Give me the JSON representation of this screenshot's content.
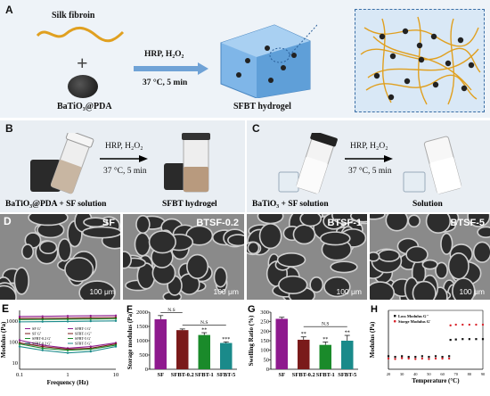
{
  "panel_a": {
    "letter": "A",
    "silk_fibroin": "Silk fibroin",
    "plus": "+",
    "batio3_pda": "BaTiO₃@PDA",
    "reagents": "HRP, H₂O₂",
    "conditions": "37 °C, 5 min",
    "product": "SFBT hydrogel"
  },
  "panel_b": {
    "letter": "B",
    "reagents": "HRP, H₂O₂",
    "conditions": "37 °C, 5 min",
    "left_label": "BaTiO₃@PDA + SF solution",
    "right_label": "SFBT hydrogel"
  },
  "panel_c": {
    "letter": "C",
    "reagents": "HRP, H₂O₂",
    "conditions": "37 °C, 5 min",
    "left_label": "BaTiO₃ + SF solution",
    "right_label": "Solution"
  },
  "panel_d": {
    "letter": "D",
    "images": [
      {
        "label": "SF",
        "scale": "100 μm"
      },
      {
        "label": "BTSF-0.2",
        "scale": "100 μm"
      },
      {
        "label": "BTSF-1",
        "scale": "100 μm"
      },
      {
        "label": "BTSF-5",
        "scale": "100 μm"
      }
    ]
  },
  "colors": {
    "sf": "#8e1a8e",
    "sfbt02": "#7a1a1a",
    "sfbt1": "#1a8a2a",
    "sfbt5": "#1a8a8a",
    "loss": "#111111",
    "storage": "#d9222a"
  },
  "chart_data": [
    {
      "panel": "E",
      "type": "line",
      "xlabel": "Frequency (Hz)",
      "ylabel": "Modulus (Pa)",
      "x_scale": "log",
      "y_scale": "log",
      "xlim": [
        0.1,
        10
      ],
      "x_ticks": [
        "0.1",
        "1",
        "10"
      ],
      "y_ticks": [
        "10",
        "100",
        "1000"
      ],
      "legend": [
        "SF G'",
        "SF G''",
        "SFBT-0.2 G'",
        "SFBT-0.2 G''",
        "SFBT-1 G'",
        "SFBT-1 G''",
        "SFBT-5 G'",
        "SFBT-5 G''"
      ],
      "series": [
        {
          "name": "SF G'",
          "x": [
            0.1,
            0.3,
            1,
            3,
            10
          ],
          "y": [
            1600,
            1650,
            1700,
            1750,
            1800
          ]
        },
        {
          "name": "SF G''",
          "x": [
            0.1,
            0.3,
            1,
            3,
            10
          ],
          "y": [
            120,
            70,
            50,
            60,
            90
          ]
        },
        {
          "name": "SFBT-0.2 G'",
          "x": [
            0.1,
            0.3,
            1,
            3,
            10
          ],
          "y": [
            1300,
            1330,
            1360,
            1400,
            1450
          ]
        },
        {
          "name": "SFBT-0.2 G''",
          "x": [
            0.1,
            0.3,
            1,
            3,
            10
          ],
          "y": [
            90,
            60,
            45,
            50,
            80
          ]
        },
        {
          "name": "SFBT-1 G'",
          "x": [
            0.1,
            0.3,
            1,
            3,
            10
          ],
          "y": [
            1150,
            1170,
            1200,
            1230,
            1280
          ]
        },
        {
          "name": "SFBT-1 G''",
          "x": [
            0.1,
            0.3,
            1,
            3,
            10
          ],
          "y": [
            80,
            50,
            40,
            45,
            70
          ]
        },
        {
          "name": "SFBT-5 G'",
          "x": [
            0.1,
            0.3,
            1,
            3,
            10
          ],
          "y": [
            900,
            920,
            940,
            970,
            1000
          ]
        },
        {
          "name": "SFBT-5 G''",
          "x": [
            0.1,
            0.3,
            1,
            3,
            10
          ],
          "y": [
            60,
            40,
            30,
            35,
            60
          ]
        }
      ]
    },
    {
      "panel": "F",
      "type": "bar",
      "ylabel": "Storage modulus (Pa)",
      "categories": [
        "SF",
        "SFBT-0.2",
        "SFBT-1",
        "SFBT-5"
      ],
      "values": [
        1750,
        1370,
        1200,
        920
      ],
      "errors": [
        130,
        40,
        80,
        40
      ],
      "ylim": [
        0,
        2000
      ],
      "y_ticks": [
        0,
        500,
        1000,
        1500,
        2000
      ],
      "significance": [
        "",
        "",
        "**",
        "***"
      ],
      "ns_labels": [
        "N.S",
        "N.S"
      ]
    },
    {
      "panel": "G",
      "type": "bar",
      "ylabel": "Swelling Ratio (%)",
      "categories": [
        "SF",
        "SFBT-0.2",
        "SFBT-1",
        "SFBT-5"
      ],
      "values": [
        265,
        155,
        128,
        150
      ],
      "errors": [
        8,
        15,
        15,
        28
      ],
      "ylim": [
        0,
        300
      ],
      "y_ticks": [
        0,
        50,
        100,
        150,
        200,
        250,
        300
      ],
      "significance": [
        "",
        "**",
        "**",
        "**"
      ],
      "ns_labels": [
        "N.S"
      ]
    },
    {
      "panel": "H",
      "type": "scatter",
      "xlabel": "Temperature (°C)",
      "ylabel": "Modulus (Pa)",
      "y_scale": "log",
      "xlim": [
        20,
        90
      ],
      "x_ticks": [
        20,
        30,
        40,
        50,
        60,
        70,
        80,
        90
      ],
      "legend": [
        "Loss Modulus G''",
        "Storge Modulus G'"
      ],
      "series": [
        {
          "name": "Loss Modulus G''",
          "x": [
            20,
            25,
            30,
            35,
            40,
            45,
            50,
            55,
            60,
            65,
            66,
            70,
            75,
            80,
            85,
            90
          ],
          "y": [
            0.045,
            0.04,
            0.045,
            0.04,
            0.04,
            0.045,
            0.04,
            0.045,
            0.04,
            0.045,
            0.7,
            0.75,
            0.8,
            0.8,
            0.8,
            0.8
          ]
        },
        {
          "name": "Storge Modulus G'",
          "x": [
            20,
            25,
            30,
            35,
            40,
            45,
            50,
            55,
            60,
            65,
            66,
            70,
            75,
            80,
            85,
            90
          ],
          "y": [
            0.03,
            0.028,
            0.032,
            0.03,
            0.028,
            0.03,
            0.028,
            0.03,
            0.03,
            0.03,
            8,
            9,
            9,
            9,
            9,
            9
          ]
        }
      ]
    }
  ]
}
